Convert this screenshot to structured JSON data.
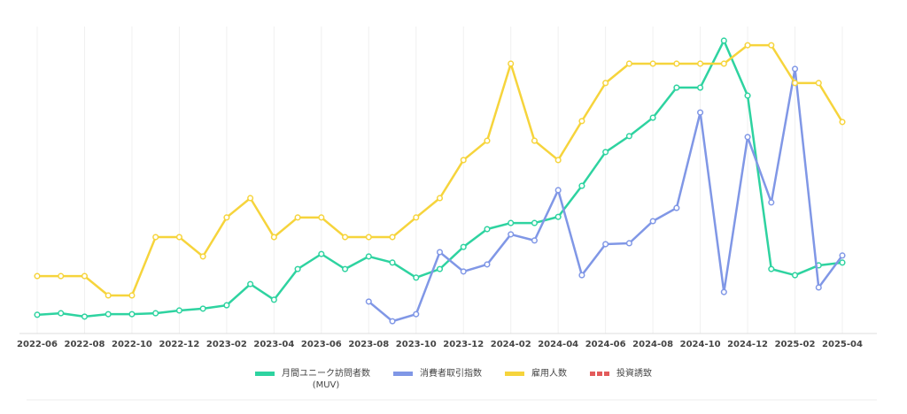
{
  "chart_data": {
    "type": "line",
    "categories": [
      "2022-06",
      null,
      "2022-08",
      null,
      "2022-10",
      null,
      "2022-12",
      null,
      "2023-02",
      null,
      "2023-04",
      null,
      "2023-06",
      null,
      "2023-08",
      null,
      "2023-10",
      null,
      "2023-12",
      null,
      "2024-02",
      null,
      "2024-04",
      null,
      "2024-06",
      null,
      "2024-08",
      null,
      "2024-10",
      null,
      "2024-12",
      null,
      "2025-02",
      null,
      "2025-04"
    ],
    "ylim": [
      0,
      100
    ],
    "grid": true,
    "legend": "bottom",
    "series": [
      {
        "name": "月間ユニーク訪問者数\n(MUV)",
        "color": "#2ed3a0",
        "values": [
          6.1,
          6.6,
          5.5,
          6.3,
          6.3,
          6.6,
          7.5,
          8.1,
          9.2,
          16.1,
          11.0,
          21.0,
          25.9,
          21.0,
          25.1,
          23.1,
          18.2,
          21.0,
          28.2,
          34.0,
          36.0,
          36.0,
          38.0,
          48.1,
          59.1,
          64.3,
          70.3,
          80.1,
          80.1,
          95.4,
          77.5,
          21.0,
          19.0,
          22.2,
          23.1
        ]
      },
      {
        "name": "消費者取引指数",
        "color": "#8097e6",
        "values": [
          null,
          null,
          null,
          null,
          null,
          null,
          null,
          null,
          null,
          null,
          null,
          null,
          null,
          null,
          10.4,
          4.0,
          6.3,
          26.5,
          20.2,
          22.5,
          32.3,
          30.3,
          46.7,
          19.0,
          29.1,
          29.4,
          36.6,
          40.9,
          72.0,
          13.5,
          64.0,
          42.7,
          86.2,
          15.0,
          25.4
        ]
      },
      {
        "name": "雇用人数",
        "color": "#f6d43c",
        "values": [
          18.7,
          18.7,
          18.7,
          12.4,
          12.4,
          31.4,
          31.4,
          25.1,
          37.8,
          44.1,
          31.4,
          37.8,
          37.8,
          31.4,
          31.4,
          31.4,
          37.8,
          44.1,
          56.5,
          62.8,
          87.9,
          62.8,
          56.5,
          69.2,
          81.6,
          87.9,
          87.9,
          87.9,
          87.9,
          87.9,
          93.9,
          93.9,
          81.6,
          81.6,
          68.9
        ]
      },
      {
        "name": "投資誘致",
        "color": "#e35b5b",
        "dashed": true,
        "values": [
          null,
          null,
          null,
          null,
          null,
          null,
          null,
          null,
          null,
          null,
          null,
          null,
          null,
          null,
          null,
          null,
          null,
          null,
          null,
          null,
          null,
          null,
          null,
          null,
          null,
          null,
          null,
          null,
          null,
          null,
          null,
          null,
          null,
          null,
          null
        ]
      }
    ]
  }
}
